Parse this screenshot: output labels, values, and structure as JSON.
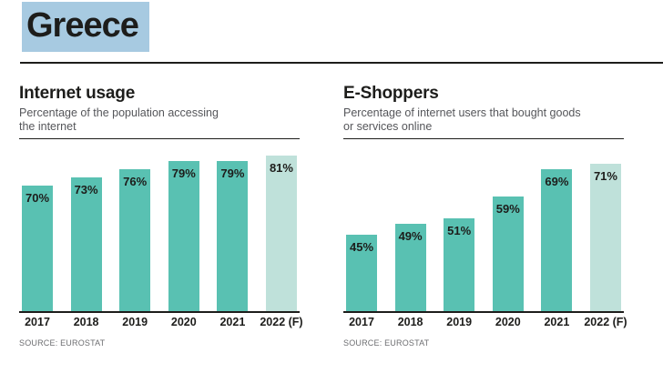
{
  "page": {
    "title": "Greece"
  },
  "colors": {
    "bar": "#59c1b2",
    "bar_forecast": "#bfe1da",
    "title_background": "#a7cae1",
    "ink": "#1d1d1b",
    "subtitle_gray": "#55565a",
    "source_gray": "#6d6e71"
  },
  "chart_data": [
    {
      "type": "bar",
      "title": "Internet usage",
      "subtitle": "Percentage of the population accessing\nthe internet",
      "categories": [
        "2017",
        "2018",
        "2019",
        "2020",
        "2021",
        "2022 (F)"
      ],
      "values": [
        70,
        73,
        76,
        79,
        79,
        81
      ],
      "labels": [
        "70%",
        "73%",
        "76%",
        "79%",
        "79%",
        "81%"
      ],
      "forecast_index": 5,
      "ylim": [
        24,
        87
      ],
      "grid": false,
      "legend": false,
      "xlabel": "",
      "ylabel": "",
      "source": "SOURCE: EUROSTAT"
    },
    {
      "type": "bar",
      "title": "E-Shoppers",
      "subtitle": "Percentage of internet users that bought goods\nor services online",
      "categories": [
        "2017",
        "2018",
        "2019",
        "2020",
        "2021",
        "2022 (F)"
      ],
      "values": [
        45,
        49,
        51,
        59,
        69,
        71
      ],
      "labels": [
        "45%",
        "49%",
        "51%",
        "59%",
        "69%",
        "71%"
      ],
      "forecast_index": 5,
      "ylim": [
        17,
        80
      ],
      "grid": false,
      "legend": false,
      "xlabel": "",
      "ylabel": "",
      "source": "SOURCE: EUROSTAT"
    }
  ]
}
